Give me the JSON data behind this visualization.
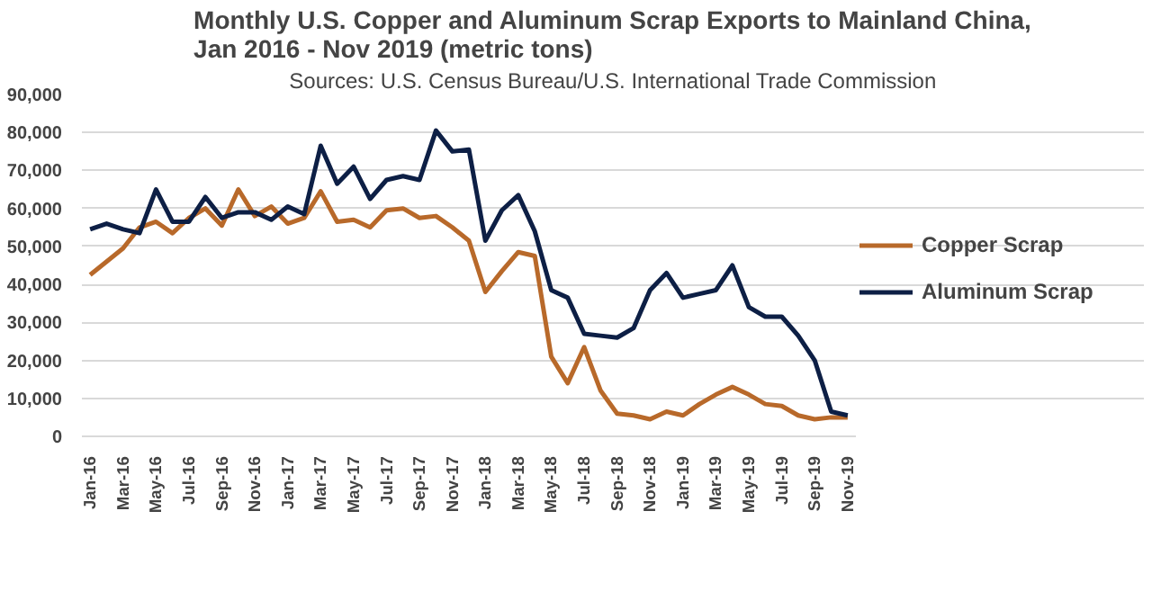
{
  "chart_data": {
    "type": "line",
    "title": "Monthly U.S. Copper and Aluminum Scrap Exports to Mainland China,\nJan 2016 - Nov 2019 (metric tons)",
    "subtitle": "Sources: U.S. Census Bureau/U.S. International Trade Commission",
    "categories": [
      "Jan-16",
      null,
      "Mar-16",
      null,
      "May-16",
      null,
      "Jul-16",
      null,
      "Sep-16",
      null,
      "Nov-16",
      null,
      "Jan-17",
      null,
      "Mar-17",
      null,
      "May-17",
      null,
      "Jul-17",
      null,
      "Sep-17",
      null,
      "Nov-17",
      null,
      "Jan-18",
      null,
      "Mar-18",
      null,
      "May-18",
      null,
      "Jul-18",
      null,
      "Sep-18",
      null,
      "Nov-18",
      null,
      "Jan-19",
      null,
      "Mar-19",
      null,
      "May-19",
      null,
      "Jul-19",
      null,
      "Sep-19",
      null,
      "Nov-19"
    ],
    "series": [
      {
        "name": "Copper Scrap",
        "color": "#b8692a",
        "values": [
          42500,
          46000,
          49500,
          55000,
          56500,
          53500,
          57500,
          60000,
          55500,
          65000,
          58000,
          60500,
          56000,
          57500,
          64500,
          56500,
          57000,
          55000,
          59500,
          60000,
          57500,
          58000,
          55000,
          51500,
          38000,
          43500,
          48500,
          47500,
          21000,
          14000,
          23500,
          12000,
          6000,
          5500,
          4500,
          6500,
          5500,
          8500,
          11000,
          13000,
          11000,
          8500,
          8000,
          5500,
          4500,
          5000,
          5000
        ]
      },
      {
        "name": "Aluminum Scrap",
        "color": "#0d1f45",
        "values": [
          54500,
          56000,
          54500,
          53500,
          65000,
          56500,
          56500,
          63000,
          57500,
          59000,
          59000,
          57000,
          60500,
          58500,
          76500,
          66500,
          71000,
          62500,
          67500,
          68500,
          67500,
          80500,
          75000,
          75500,
          51500,
          59500,
          63500,
          54000,
          38500,
          36500,
          27000,
          26500,
          26000,
          28500,
          38500,
          43000,
          36500,
          37500,
          38500,
          45000,
          34000,
          31500,
          31500,
          26500,
          20000,
          6500,
          5500
        ]
      }
    ],
    "ylim": [
      0,
      90000
    ],
    "yticks": [
      0,
      {
        "value": 10000,
        "label": "10,000"
      },
      {
        "value": 20000,
        "label": "20,000"
      },
      {
        "value": 30000,
        "label": "30,000"
      },
      {
        "value": 40000,
        "label": "40,000"
      },
      {
        "value": 50000,
        "label": "50,000"
      },
      {
        "value": 60000,
        "label": "60,000"
      },
      {
        "value": 70000,
        "label": "70,000"
      },
      {
        "value": 80000,
        "label": "80,000"
      },
      {
        "value": 90000,
        "label": "90,000"
      }
    ],
    "grid": "y",
    "legend": "right",
    "marker": "none",
    "line_style": "solid"
  }
}
